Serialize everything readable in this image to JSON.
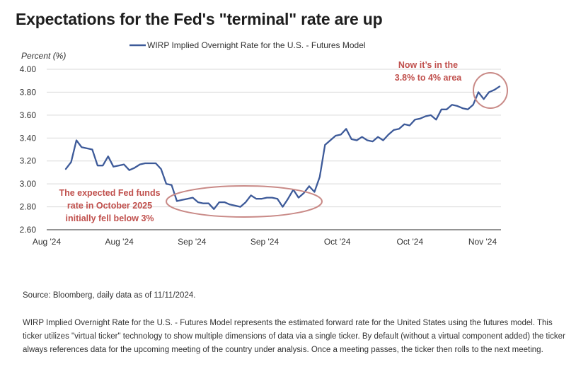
{
  "chart_data": {
    "type": "line",
    "title": "Expectations for the Fed's \"terminal\" rate are up",
    "ylabel": "Percent (%)",
    "ylim": [
      2.6,
      4.0
    ],
    "yticks": [
      "4.00",
      "3.80",
      "3.60",
      "3.40",
      "3.20",
      "3.00",
      "2.80",
      "2.60"
    ],
    "xticks": [
      "Aug '24",
      "Aug '24",
      "Sep '24",
      "Sep '24",
      "Oct '24",
      "Oct '24",
      "Nov '24"
    ],
    "grid": "horizontal",
    "legend": "top",
    "series": [
      {
        "name": "WIRP Implied Overnight Rate for the U.S. - Futures Model",
        "color": "#3d5a99",
        "values": [
          3.13,
          3.19,
          3.38,
          3.32,
          3.31,
          3.3,
          3.16,
          3.16,
          3.24,
          3.15,
          3.16,
          3.17,
          3.12,
          3.14,
          3.17,
          3.18,
          3.18,
          3.18,
          3.13,
          3.0,
          2.99,
          2.85,
          2.86,
          2.87,
          2.88,
          2.84,
          2.83,
          2.83,
          2.78,
          2.84,
          2.84,
          2.82,
          2.81,
          2.8,
          2.84,
          2.9,
          2.87,
          2.87,
          2.88,
          2.88,
          2.87,
          2.8,
          2.87,
          2.95,
          2.88,
          2.92,
          2.98,
          2.93,
          3.06,
          3.34,
          3.38,
          3.42,
          3.43,
          3.48,
          3.39,
          3.38,
          3.41,
          3.38,
          3.37,
          3.41,
          3.38,
          3.43,
          3.47,
          3.48,
          3.52,
          3.51,
          3.56,
          3.57,
          3.59,
          3.6,
          3.56,
          3.65,
          3.65,
          3.69,
          3.68,
          3.66,
          3.65,
          3.69,
          3.8,
          3.74,
          3.8,
          3.82,
          3.85
        ]
      }
    ],
    "annotations": {
      "left": [
        "The expected Fed funds",
        "rate in October 2025",
        "initially fell below 3%"
      ],
      "right": [
        "Now it’s in the",
        "3.8% to 4% area"
      ],
      "color": "#c0504d"
    }
  },
  "footer": {
    "source": "Source: Bloomberg, daily data as of 11/11/2024.",
    "note": "WIRP Implied Overnight Rate for the U.S. - Futures Model represents the estimated forward rate for the United States using the futures model. This ticker utilizes \"virtual ticker\" technology to show multiple dimensions of data via a single ticker. By default (without a virtual component added) the ticker always references data for the upcoming meeting of the country under analysis. Once a meeting passes, the ticker then rolls to the next meeting."
  }
}
